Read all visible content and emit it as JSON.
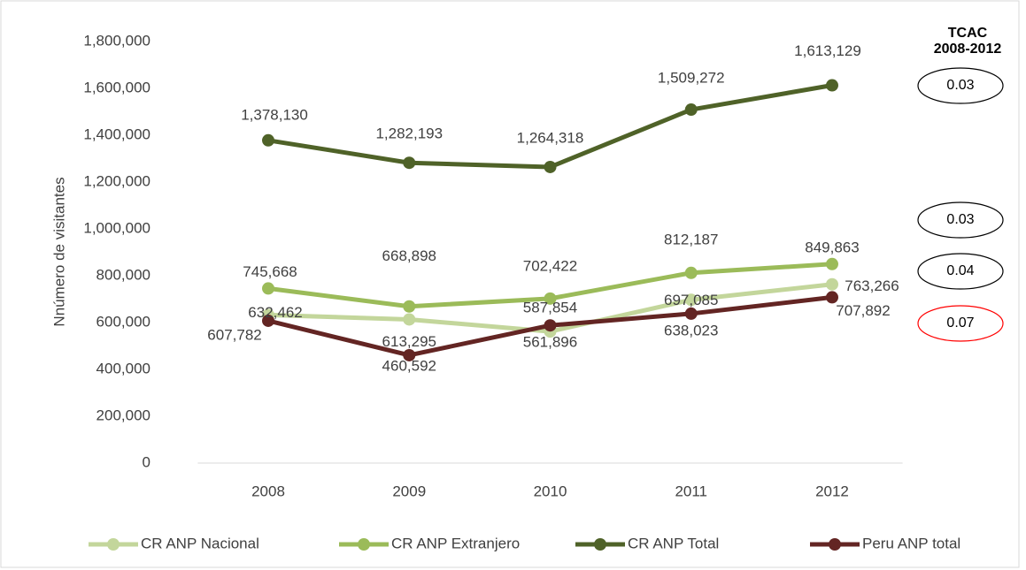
{
  "chart_data": {
    "type": "line",
    "y_label": "Nnúmero de visitantes",
    "categories": [
      "2008",
      "2009",
      "2010",
      "2011",
      "2012"
    ],
    "ylim": [
      0,
      1800000
    ],
    "yticks": [
      0,
      {
        "value": 200000,
        "label": "200,000"
      },
      {
        "value": 400000,
        "label": "400,000"
      },
      {
        "value": 600000,
        "label": "600,000"
      },
      {
        "value": 800000,
        "label": "800,000"
      },
      {
        "value": 1000000,
        "label": "1,000,000"
      },
      {
        "value": 1200000,
        "label": "1,200,000"
      },
      {
        "value": 1400000,
        "label": "1,400,000"
      },
      {
        "value": 1600000,
        "label": "1,600,000"
      },
      {
        "value": 1800000,
        "label": "1,800,000"
      }
    ],
    "series": [
      {
        "name": "CR ANP Nacional",
        "color": "#c3d69b",
        "values": [
          632462,
          613295,
          561896,
          697085,
          763266
        ],
        "value_labels": [
          "632,462",
          "613,295",
          "561,896",
          "697,085",
          "763,266"
        ]
      },
      {
        "name": "CR ANP Extranjero",
        "color": "#9bbb59",
        "values": [
          745668,
          668898,
          702422,
          812187,
          849863
        ],
        "value_labels": [
          "745,668",
          "668,898",
          "702,422",
          "812,187",
          "849,863"
        ]
      },
      {
        "name": "CR ANP Total",
        "color": "#4f6228",
        "values": [
          1378130,
          1282193,
          1264318,
          1509272,
          1613129
        ],
        "value_labels": [
          "1,378,130",
          "1,282,193",
          "1,264,318",
          "1,509,272",
          "1,613,129"
        ]
      },
      {
        "name": "Peru ANP total",
        "color": "#632523",
        "values": [
          607782,
          460592,
          587854,
          638023,
          707892
        ],
        "value_labels": [
          "607,782",
          "460,592",
          "587,854",
          "638,023",
          "707,892"
        ]
      }
    ],
    "annotation_title": [
      "TCAC",
      "2008-2012"
    ],
    "annotations": [
      {
        "text": "0.03",
        "color": "#000000"
      },
      {
        "text": "0.03",
        "color": "#000000"
      },
      {
        "text": "0.04",
        "color": "#000000"
      },
      {
        "text": "0.07",
        "color": "#ff0000"
      }
    ]
  }
}
